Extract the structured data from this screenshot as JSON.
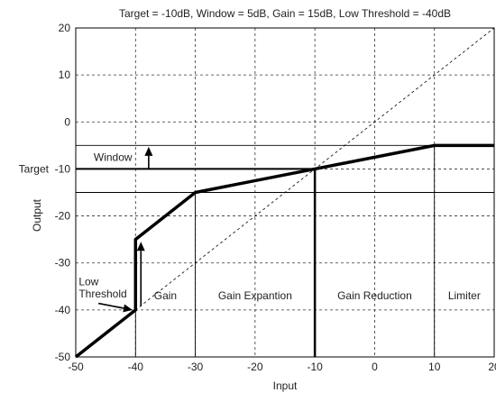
{
  "chart_data": {
    "type": "line",
    "title": "Target = -10dB, Window = 5dB, Gain = 15dB, Low Threshold = -40dB",
    "xlabel": "Input",
    "ylabel": "Output",
    "xlim": [
      -50,
      20
    ],
    "ylim": [
      -50,
      20
    ],
    "x_ticks": [
      -50,
      -40,
      -30,
      -20,
      -10,
      0,
      10,
      20
    ],
    "y_ticks": [
      -50,
      -40,
      -30,
      -20,
      -10,
      0,
      10,
      20
    ],
    "x_tick_labels": [
      "-50",
      "-40",
      "-30",
      "-20",
      "-10",
      "0",
      "10",
      "20"
    ],
    "y_tick_labels": [
      "-50",
      "-40",
      "-30",
      "-20",
      "-10",
      "0",
      "10",
      "20"
    ],
    "grid": true,
    "series": [
      {
        "style": "thick-solid",
        "x": [
          -50,
          -40,
          -40,
          -30,
          -10,
          10,
          20
        ],
        "y": [
          -50,
          -40,
          -25,
          -15,
          -10,
          -5,
          -5
        ]
      },
      {
        "style": "thin-dashed",
        "x": [
          -50,
          20
        ],
        "y": [
          -50,
          20
        ]
      }
    ],
    "target": {
      "label": "Target",
      "value": -10
    },
    "window_lines": [
      -5,
      -15
    ],
    "region_dividers": [
      -40,
      -30,
      -10,
      10
    ],
    "target_marker_x": -10,
    "region_labels": [
      {
        "text": "Gain",
        "x": -35,
        "y": -37
      },
      {
        "text": "Gain Expantion",
        "x": -20,
        "y": -37
      },
      {
        "text": "Gain Reduction",
        "x": 0,
        "y": -37
      },
      {
        "text": "Limiter",
        "x": 15,
        "y": -37
      }
    ],
    "annotations": [
      {
        "text": "Window",
        "x": -47,
        "y": -7.5
      },
      {
        "text": "Low",
        "x": -49.5,
        "y": -34
      },
      {
        "text": "Threshold",
        "x": -49.5,
        "y": -36.6
      }
    ],
    "arrows": [
      {
        "from": [
          -37.8,
          -10.1
        ],
        "to": [
          -37.8,
          -5.3
        ]
      },
      {
        "from": [
          -39.1,
          -39.2
        ],
        "to": [
          -39.1,
          -25.5
        ]
      },
      {
        "from": [
          -46.2,
          -38.6
        ],
        "to": [
          -40.5,
          -40
        ]
      }
    ],
    "colors": {
      "line": "#000000",
      "grid": "#333333",
      "background": "#ffffff"
    }
  }
}
